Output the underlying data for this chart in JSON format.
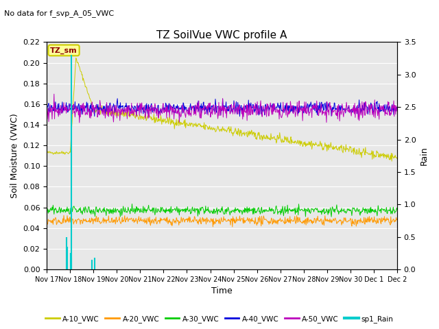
{
  "title": "TZ SoilVue VWC profile A",
  "subtitle": "No data for f_svp_A_05_VWC",
  "xlabel": "Time",
  "ylabel_left": "Soil Moisture (VWC)",
  "ylabel_right": "Rain",
  "ylim_left": [
    0.0,
    0.22
  ],
  "ylim_right": [
    0.0,
    3.5
  ],
  "yticks_left": [
    0.0,
    0.02,
    0.04,
    0.06,
    0.08,
    0.1,
    0.12,
    0.14,
    0.16,
    0.18,
    0.2,
    0.22
  ],
  "yticks_right": [
    0.0,
    0.5,
    1.0,
    1.5,
    2.0,
    2.5,
    3.0,
    3.5
  ],
  "plot_bg_color": "#e8e8e8",
  "fig_bg_color": "#ffffff",
  "grid_color": "#ffffff",
  "colors": {
    "A10": "#cccc00",
    "A20": "#ff9900",
    "A30": "#00cc00",
    "A40": "#0000dd",
    "A50": "#bb00bb",
    "rain": "#00cccc"
  },
  "legend_labels": [
    "A-10_VWC",
    "A-20_VWC",
    "A-30_VWC",
    "A-40_VWC",
    "A-50_VWC",
    "sp1_Rain"
  ],
  "annotation_text": "TZ_sm",
  "annotation_box_facecolor": "#ffff99",
  "annotation_box_edgecolor": "#cccc00",
  "xtick_labels": [
    "Nov 17",
    "Nov 18",
    "Nov 19",
    "Nov 20",
    "Nov 21",
    "Nov 22",
    "Nov 23",
    "Nov 24",
    "Nov 25",
    "Nov 26",
    "Nov 27",
    "Nov 28",
    "Nov 29",
    "Nov 30",
    "Dec 1",
    "Dec 2"
  ],
  "n_days": 15,
  "lw_thin": 0.7,
  "lw_rain": 1.5
}
